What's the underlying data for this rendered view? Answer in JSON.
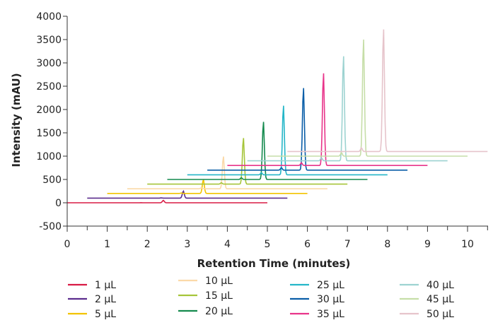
{
  "chart_data": {
    "type": "line",
    "title": "",
    "xlabel": "Retention Time (minutes)",
    "ylabel": "Intensity (mAU)",
    "xlim": [
      0,
      10.5
    ],
    "ylim": [
      -500,
      4000
    ],
    "x_ticks": [
      "0",
      "1",
      "2",
      "3",
      "4",
      "5",
      "6",
      "7",
      "8",
      "9",
      "10"
    ],
    "y_ticks": [
      "-500",
      "0",
      "500",
      "1000",
      "1500",
      "2000",
      "2500",
      "3000",
      "3500",
      "4000"
    ],
    "grid": false,
    "legend_position": "bottom",
    "stacked_offset_note": "",
    "series": [
      {
        "name": "1 μL",
        "color": "#d81b45",
        "x_start": 0.0,
        "x_end": 5.0,
        "baseline": 0,
        "peak_x": 2.4,
        "peak_height": 50
      },
      {
        "name": "2 μL",
        "color": "#5b2d8e",
        "x_start": 0.5,
        "x_end": 5.5,
        "baseline": 100,
        "peak_x": 2.9,
        "peak_height": 150
      },
      {
        "name": "5 μL",
        "color": "#f2c300",
        "x_start": 1.0,
        "x_end": 6.0,
        "baseline": 200,
        "peak_x": 3.4,
        "peak_height": 300
      },
      {
        "name": "10 μL",
        "color": "#fbd9a8",
        "x_start": 1.5,
        "x_end": 6.5,
        "baseline": 300,
        "peak_x": 3.9,
        "peak_height": 700
      },
      {
        "name": "15 μL",
        "color": "#a6c53a",
        "x_start": 2.0,
        "x_end": 7.0,
        "baseline": 400,
        "peak_x": 4.4,
        "peak_height": 1000
      },
      {
        "name": "20 μL",
        "color": "#148a4e",
        "x_start": 2.5,
        "x_end": 7.5,
        "baseline": 500,
        "peak_x": 4.9,
        "peak_height": 1250
      },
      {
        "name": "25 μL",
        "color": "#25b6c8",
        "x_start": 3.0,
        "x_end": 8.0,
        "baseline": 600,
        "peak_x": 5.4,
        "peak_height": 1500
      },
      {
        "name": "30 μL",
        "color": "#0a5ea8",
        "x_start": 3.5,
        "x_end": 8.5,
        "baseline": 700,
        "peak_x": 5.9,
        "peak_height": 1780
      },
      {
        "name": "35 μL",
        "color": "#e8348a",
        "x_start": 4.0,
        "x_end": 9.0,
        "baseline": 800,
        "peak_x": 6.4,
        "peak_height": 2000
      },
      {
        "name": "40 μL",
        "color": "#9dd3d1",
        "x_start": 4.5,
        "x_end": 9.5,
        "baseline": 900,
        "peak_x": 6.9,
        "peak_height": 2270
      },
      {
        "name": "45 μL",
        "color": "#c6dea8",
        "x_start": 5.0,
        "x_end": 10.0,
        "baseline": 1000,
        "peak_x": 7.4,
        "peak_height": 2530
      },
      {
        "name": "50 μL",
        "color": "#e6c4cb",
        "x_start": 5.5,
        "x_end": 10.5,
        "baseline": 1100,
        "peak_x": 7.9,
        "peak_height": 2650
      }
    ]
  }
}
